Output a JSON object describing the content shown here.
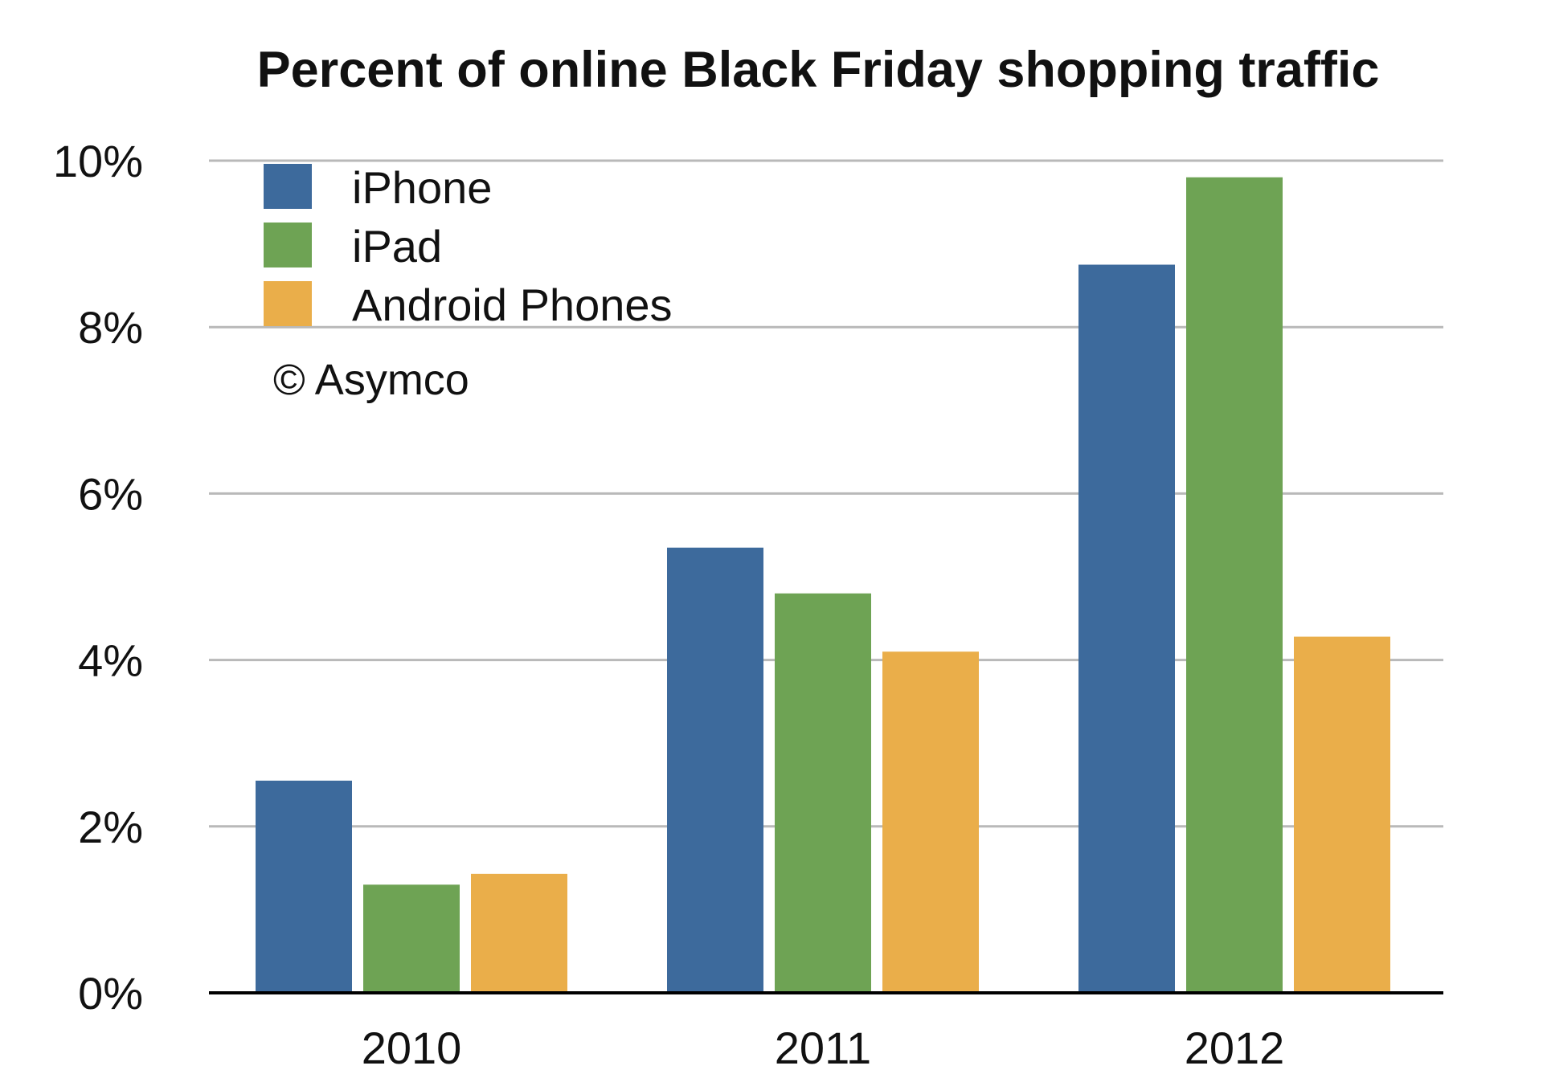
{
  "chart_data": {
    "type": "bar",
    "title": "Percent of online Black Friday shopping traffic",
    "categories": [
      "2010",
      "2011",
      "2012"
    ],
    "series": [
      {
        "name": "iPhone",
        "values": [
          2.55,
          5.35,
          8.75
        ],
        "color": "#3d6a9c"
      },
      {
        "name": "iPad",
        "values": [
          1.3,
          4.8,
          9.8
        ],
        "color": "#6ea354"
      },
      {
        "name": "Android Phones",
        "values": [
          1.43,
          4.1,
          4.28
        ],
        "color": "#eaae4a"
      }
    ],
    "yticks": [
      "0%",
      "2%",
      "4%",
      "6%",
      "8%",
      "10%"
    ],
    "ylim": [
      0,
      10
    ],
    "grid": true,
    "legend_position": "top-left",
    "annotation": "© Asymco",
    "xlabel": "",
    "ylabel": ""
  }
}
